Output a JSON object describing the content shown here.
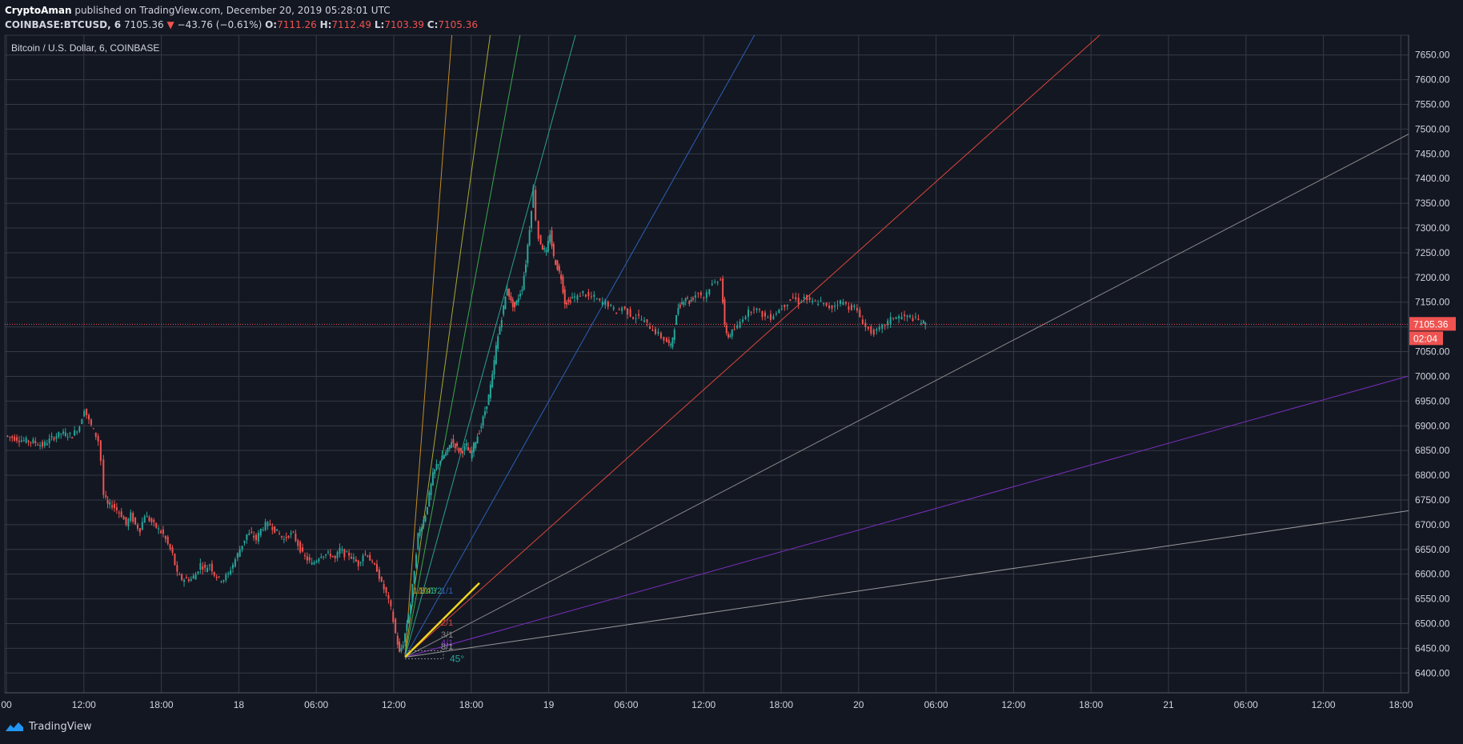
{
  "header": {
    "author": "CryptoAman",
    "published": "published on TradingView.com, December 20, 2019 05:28:01 UTC",
    "symbol": "COINBASE:BTCUSD, 6",
    "last": "7105.36",
    "arrow": "▼",
    "change": "−43.76 (−0.61%)",
    "o_label": "O:",
    "o": "7111.26",
    "h_label": "H:",
    "h": "7112.49",
    "l_label": "L:",
    "l": "7103.39",
    "c_label": "C:",
    "c": "7105.36"
  },
  "footer": {
    "brand": "TradingView"
  },
  "colors": {
    "background": "#131722",
    "grid": "#363a45",
    "up": "#26a69a",
    "down": "#ef5350",
    "price_tag": "#ef5350",
    "text": "#d1d4dc"
  },
  "chart_data": {
    "type": "candlestick",
    "title": "Bitcoin / U.S. Dollar, 6, COINBASE",
    "ylim": [
      6360,
      7690
    ],
    "y_ticks": [
      6400,
      6450,
      6500,
      6550,
      6600,
      6650,
      6700,
      6750,
      6800,
      6850,
      6900,
      6950,
      7000,
      7050,
      7100,
      7150,
      7200,
      7250,
      7300,
      7350,
      7400,
      7450,
      7500,
      7550,
      7600,
      7650
    ],
    "x_ticks": [
      "00",
      "12:00",
      "18:00",
      "18",
      "06:00",
      "12:00",
      "18:00",
      "19",
      "06:00",
      "12:00",
      "18:00",
      "20",
      "06:00",
      "12:00",
      "18:00",
      "21",
      "06:00",
      "12:00",
      "18:00"
    ],
    "grid": true,
    "last_price": "7105.36",
    "countdown": "02:04",
    "price_path": [
      [
        0,
        6880
      ],
      [
        10,
        6875
      ],
      [
        20,
        6870
      ],
      [
        30,
        6868
      ],
      [
        40,
        6860
      ],
      [
        50,
        6875
      ],
      [
        60,
        6885
      ],
      [
        72,
        6880
      ],
      [
        80,
        6900
      ],
      [
        85,
        6935
      ],
      [
        90,
        6910
      ],
      [
        95,
        6890
      ],
      [
        100,
        6870
      ],
      [
        103,
        6830
      ],
      [
        106,
        6760
      ],
      [
        110,
        6740
      ],
      [
        115,
        6740
      ],
      [
        120,
        6730
      ],
      [
        125,
        6720
      ],
      [
        130,
        6700
      ],
      [
        135,
        6720
      ],
      [
        140,
        6700
      ],
      [
        145,
        6690
      ],
      [
        150,
        6720
      ],
      [
        155,
        6710
      ],
      [
        160,
        6700
      ],
      [
        165,
        6690
      ],
      [
        170,
        6680
      ],
      [
        175,
        6660
      ],
      [
        180,
        6640
      ],
      [
        185,
        6600
      ],
      [
        190,
        6590
      ],
      [
        195,
        6590
      ],
      [
        200,
        6590
      ],
      [
        205,
        6600
      ],
      [
        210,
        6620
      ],
      [
        215,
        6610
      ],
      [
        220,
        6620
      ],
      [
        225,
        6600
      ],
      [
        230,
        6590
      ],
      [
        235,
        6590
      ],
      [
        240,
        6600
      ],
      [
        245,
        6620
      ],
      [
        250,
        6640
      ],
      [
        255,
        6660
      ],
      [
        260,
        6680
      ],
      [
        265,
        6680
      ],
      [
        270,
        6670
      ],
      [
        275,
        6690
      ],
      [
        280,
        6700
      ],
      [
        285,
        6700
      ],
      [
        290,
        6690
      ],
      [
        295,
        6680
      ],
      [
        300,
        6670
      ],
      [
        305,
        6680
      ],
      [
        310,
        6680
      ],
      [
        315,
        6660
      ],
      [
        320,
        6640
      ],
      [
        325,
        6630
      ],
      [
        330,
        6620
      ],
      [
        335,
        6630
      ],
      [
        340,
        6640
      ],
      [
        345,
        6640
      ],
      [
        350,
        6640
      ],
      [
        355,
        6630
      ],
      [
        360,
        6650
      ],
      [
        365,
        6640
      ],
      [
        370,
        6640
      ],
      [
        375,
        6630
      ],
      [
        380,
        6620
      ],
      [
        385,
        6640
      ],
      [
        390,
        6640
      ],
      [
        395,
        6620
      ],
      [
        400,
        6610
      ],
      [
        405,
        6580
      ],
      [
        410,
        6560
      ],
      [
        415,
        6530
      ],
      [
        420,
        6480
      ],
      [
        424,
        6440
      ],
      [
        428,
        6460
      ],
      [
        432,
        6500
      ],
      [
        436,
        6540
      ],
      [
        440,
        6610
      ],
      [
        444,
        6680
      ],
      [
        448,
        6700
      ],
      [
        452,
        6720
      ],
      [
        456,
        6760
      ],
      [
        460,
        6800
      ],
      [
        464,
        6820
      ],
      [
        468,
        6830
      ],
      [
        472,
        6840
      ],
      [
        476,
        6850
      ],
      [
        480,
        6870
      ],
      [
        484,
        6860
      ],
      [
        488,
        6850
      ],
      [
        492,
        6850
      ],
      [
        496,
        6860
      ],
      [
        500,
        6840
      ],
      [
        504,
        6860
      ],
      [
        508,
        6880
      ],
      [
        512,
        6900
      ],
      [
        516,
        6930
      ],
      [
        520,
        6960
      ],
      [
        524,
        7000
      ],
      [
        528,
        7060
      ],
      [
        532,
        7100
      ],
      [
        536,
        7140
      ],
      [
        540,
        7180
      ],
      [
        544,
        7150
      ],
      [
        548,
        7140
      ],
      [
        552,
        7160
      ],
      [
        556,
        7180
      ],
      [
        560,
        7230
      ],
      [
        564,
        7300
      ],
      [
        568,
        7380
      ],
      [
        571,
        7320
      ],
      [
        574,
        7280
      ],
      [
        578,
        7260
      ],
      [
        582,
        7250
      ],
      [
        586,
        7290
      ],
      [
        590,
        7240
      ],
      [
        594,
        7220
      ],
      [
        598,
        7200
      ],
      [
        602,
        7150
      ],
      [
        606,
        7150
      ],
      [
        610,
        7160
      ],
      [
        616,
        7160
      ],
      [
        622,
        7170
      ],
      [
        628,
        7160
      ],
      [
        634,
        7160
      ],
      [
        640,
        7150
      ],
      [
        646,
        7150
      ],
      [
        652,
        7140
      ],
      [
        658,
        7130
      ],
      [
        664,
        7140
      ],
      [
        670,
        7130
      ],
      [
        676,
        7120
      ],
      [
        682,
        7120
      ],
      [
        688,
        7110
      ],
      [
        694,
        7100
      ],
      [
        700,
        7090
      ],
      [
        706,
        7080
      ],
      [
        712,
        7070
      ],
      [
        716,
        7060
      ],
      [
        720,
        7100
      ],
      [
        724,
        7140
      ],
      [
        728,
        7150
      ],
      [
        732,
        7160
      ],
      [
        736,
        7150
      ],
      [
        740,
        7160
      ],
      [
        746,
        7170
      ],
      [
        752,
        7160
      ],
      [
        758,
        7180
      ],
      [
        764,
        7190
      ],
      [
        770,
        7200
      ],
      [
        774,
        7100
      ],
      [
        778,
        7080
      ],
      [
        782,
        7090
      ],
      [
        788,
        7100
      ],
      [
        794,
        7120
      ],
      [
        800,
        7130
      ],
      [
        806,
        7140
      ],
      [
        812,
        7130
      ],
      [
        818,
        7120
      ],
      [
        824,
        7120
      ],
      [
        830,
        7130
      ],
      [
        836,
        7140
      ],
      [
        842,
        7150
      ],
      [
        848,
        7160
      ],
      [
        854,
        7150
      ],
      [
        860,
        7160
      ],
      [
        866,
        7150
      ],
      [
        872,
        7150
      ],
      [
        878,
        7150
      ],
      [
        884,
        7140
      ],
      [
        890,
        7140
      ],
      [
        896,
        7150
      ],
      [
        902,
        7150
      ],
      [
        908,
        7140
      ],
      [
        914,
        7140
      ],
      [
        920,
        7120
      ],
      [
        926,
        7100
      ],
      [
        932,
        7090
      ],
      [
        938,
        7090
      ],
      [
        944,
        7100
      ],
      [
        950,
        7110
      ],
      [
        956,
        7120
      ],
      [
        962,
        7120
      ],
      [
        968,
        7120
      ],
      [
        974,
        7120
      ],
      [
        980,
        7115
      ],
      [
        986,
        7110
      ],
      [
        990,
        7105
      ]
    ],
    "gann_fan": {
      "labels": [
        "1/8",
        "1/4",
        "1/3",
        "1/2",
        "1/1",
        "2/1",
        "3/1",
        "4/1",
        "8/1"
      ],
      "angle_label": "45°"
    }
  }
}
